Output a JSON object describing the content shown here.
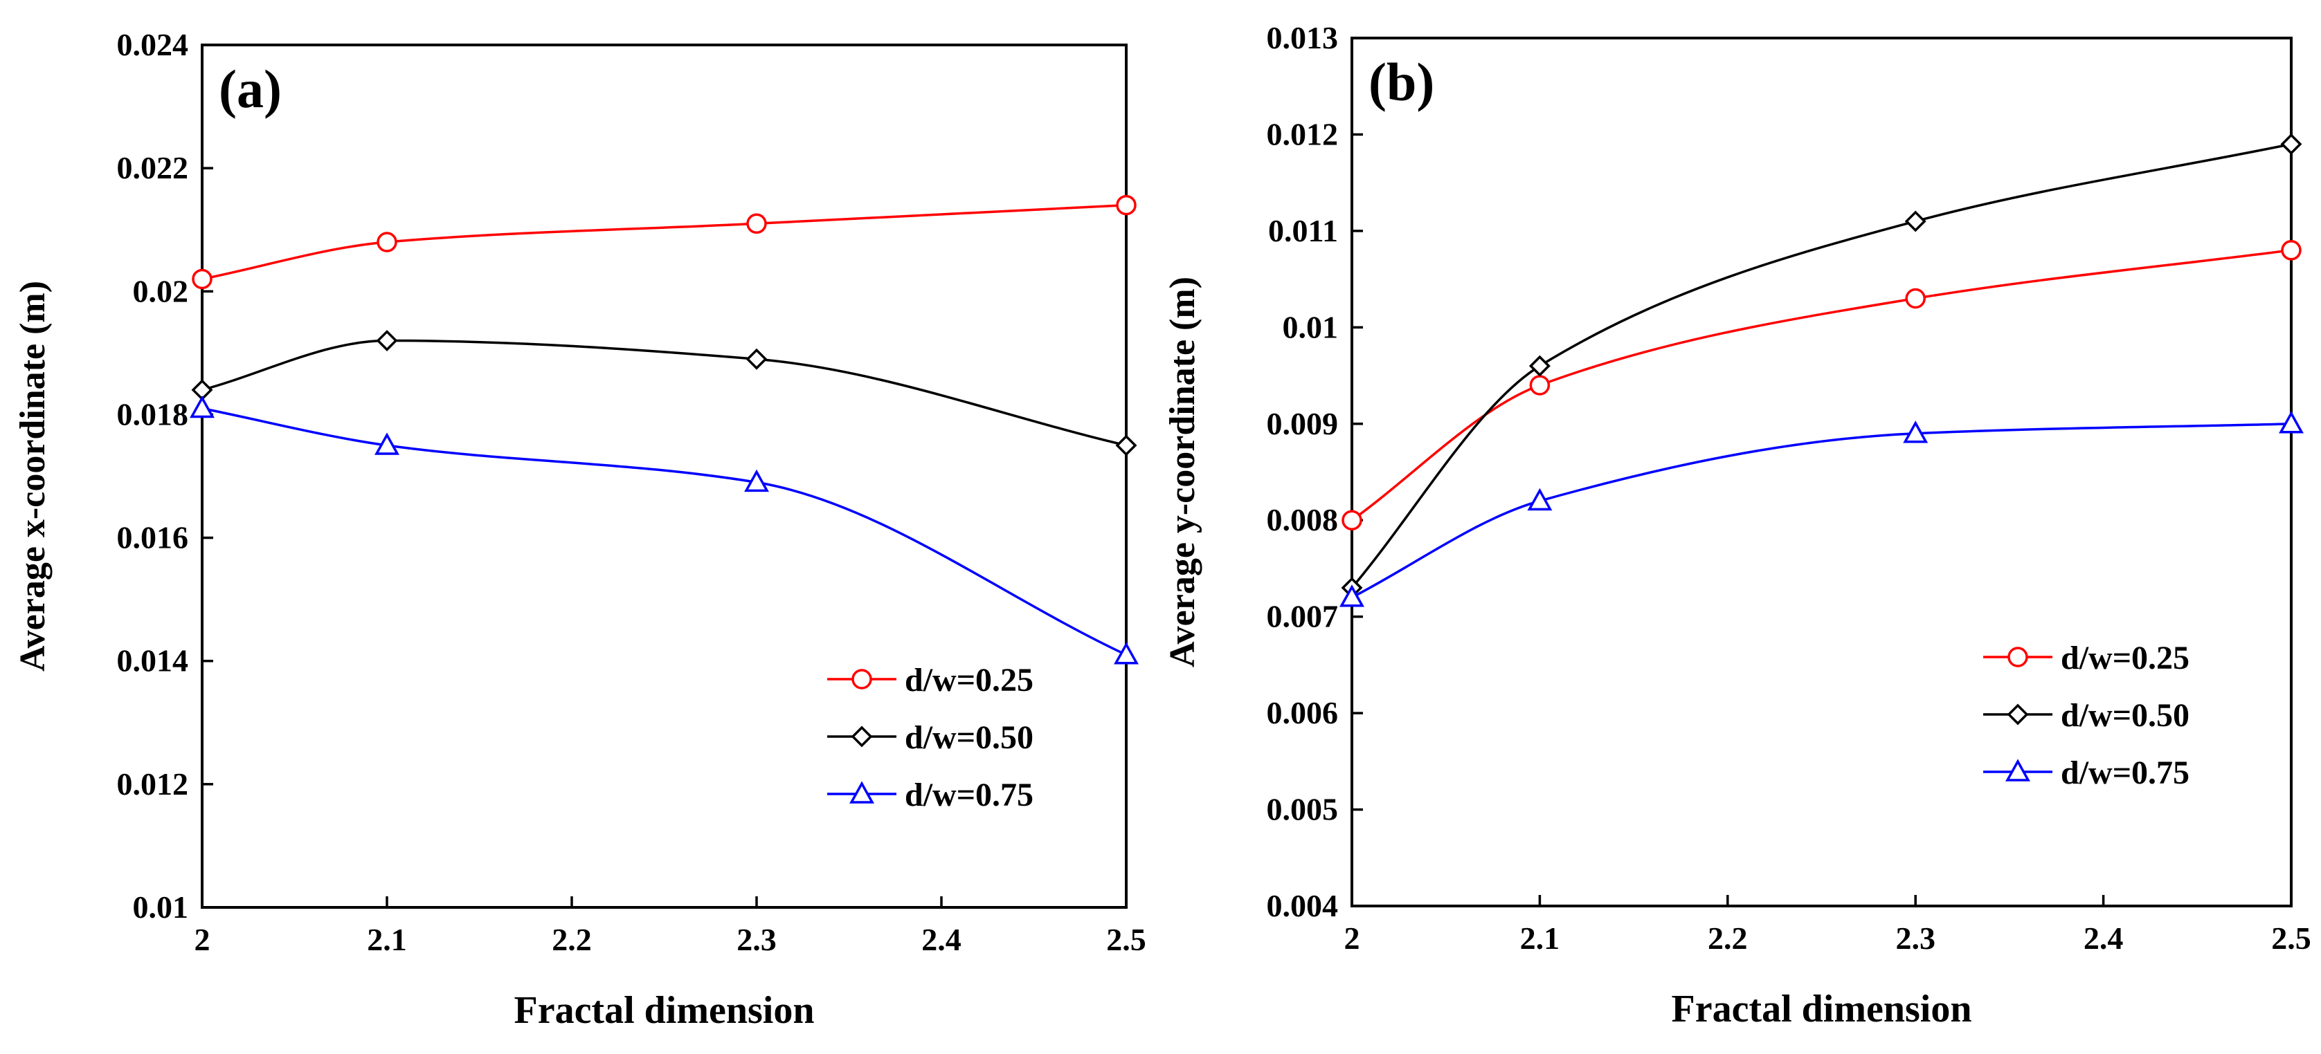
{
  "chart_data": [
    {
      "type": "line",
      "panel_label": "(a)",
      "xlabel": "Fractal dimension",
      "ylabel": "Average  x-coordinate (m)",
      "xlim": [
        2,
        2.5
      ],
      "ylim": [
        0.01,
        0.024
      ],
      "x_ticks": [
        2,
        2.1,
        2.2,
        2.3,
        2.4,
        2.5
      ],
      "x_tick_labels": [
        "2",
        "2.1",
        "2.2",
        "2.3",
        "2.4",
        "2.5"
      ],
      "y_ticks": [
        0.01,
        0.012,
        0.014,
        0.016,
        0.018,
        0.02,
        0.022,
        0.024
      ],
      "y_tick_labels": [
        "0.01",
        "0.012",
        "0.014",
        "0.016",
        "0.018",
        "0.02",
        "0.022",
        "0.024"
      ],
      "legend_position": "bottom-right",
      "series": [
        {
          "name": "d/w=0.25",
          "color": "#ff0000",
          "marker": "circle",
          "x": [
            2,
            2.1,
            2.3,
            2.5
          ],
          "values": [
            0.0202,
            0.0208,
            0.0211,
            0.0214
          ]
        },
        {
          "name": "d/w=0.50",
          "color": "#000000",
          "marker": "diamond",
          "x": [
            2,
            2.1,
            2.3,
            2.5
          ],
          "values": [
            0.0184,
            0.0192,
            0.0189,
            0.0175
          ]
        },
        {
          "name": "d/w=0.75",
          "color": "#0000ff",
          "marker": "triangle",
          "x": [
            2,
            2.1,
            2.3,
            2.5
          ],
          "values": [
            0.0181,
            0.0175,
            0.0169,
            0.0141
          ]
        }
      ]
    },
    {
      "type": "line",
      "panel_label": "(b)",
      "xlabel": "Fractal dimension",
      "ylabel": "Average  y-coordinate (m)",
      "xlim": [
        2,
        2.5
      ],
      "ylim": [
        0.004,
        0.013
      ],
      "x_ticks": [
        2,
        2.1,
        2.2,
        2.3,
        2.4,
        2.5
      ],
      "x_tick_labels": [
        "2",
        "2.1",
        "2.2",
        "2.3",
        "2.4",
        "2.5"
      ],
      "y_ticks": [
        0.004,
        0.005,
        0.006,
        0.007,
        0.008,
        0.009,
        0.01,
        0.011,
        0.012,
        0.013
      ],
      "y_tick_labels": [
        "0.004",
        "0.005",
        "0.006",
        "0.007",
        "0.008",
        "0.009",
        "0.01",
        "0.011",
        "0.012",
        "0.013"
      ],
      "legend_position": "bottom-right",
      "series": [
        {
          "name": "d/w=0.25",
          "color": "#ff0000",
          "marker": "circle",
          "x": [
            2,
            2.1,
            2.3,
            2.5
          ],
          "values": [
            0.008,
            0.0094,
            0.0103,
            0.0108
          ]
        },
        {
          "name": "d/w=0.50",
          "color": "#000000",
          "marker": "diamond",
          "x": [
            2,
            2.1,
            2.3,
            2.5
          ],
          "values": [
            0.0073,
            0.0096,
            0.0111,
            0.0119
          ]
        },
        {
          "name": "d/w=0.75",
          "color": "#0000ff",
          "marker": "triangle",
          "x": [
            2,
            2.1,
            2.3,
            2.5
          ],
          "values": [
            0.0072,
            0.0082,
            0.0089,
            0.009
          ]
        }
      ]
    }
  ]
}
